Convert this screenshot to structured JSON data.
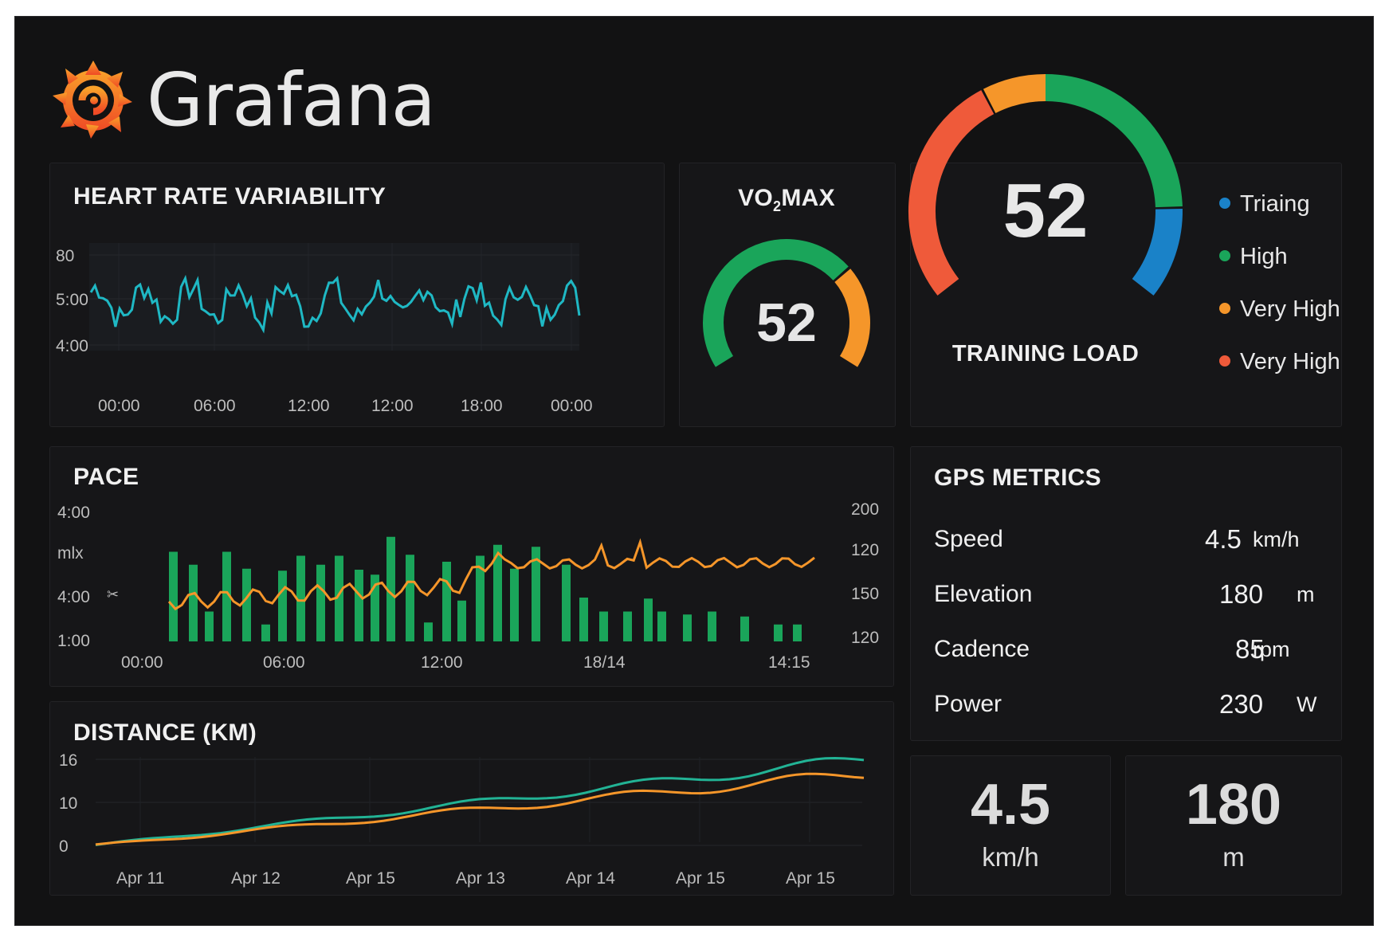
{
  "app": {
    "name": "Grafana"
  },
  "colors": {
    "teal": "#1fb8c4",
    "green": "#1aa55a",
    "orange": "#f5962a",
    "red": "#ef5a3a",
    "blue": "#1a82c8",
    "line_green": "#22b395"
  },
  "hrv": {
    "title": "HEART RATE VARIABILITY",
    "y_labels": [
      "80",
      "5:00",
      "4:00"
    ],
    "x_labels": [
      "00:00",
      "06:00",
      "12:00",
      "12:00",
      "18:00",
      "00:00"
    ]
  },
  "vo2": {
    "title_pre": "VO",
    "title_sub": "2",
    "title_post": "MAX",
    "value": "52",
    "gauge_fraction": 0.7
  },
  "training_load": {
    "value": "52",
    "label": "TRAINING LOAD",
    "legend": [
      {
        "label": "Triaing",
        "color": "#1a82c8"
      },
      {
        "label": "High",
        "color": "#1aa55a"
      },
      {
        "label": "Very High",
        "color": "#f5962a"
      },
      {
        "label": "Very High",
        "color": "#ef5a3a"
      }
    ]
  },
  "pace": {
    "title": "PACE",
    "y_left": [
      "4:00",
      "mlx",
      "4:00",
      "1:00"
    ],
    "y_right": [
      "200",
      "120",
      "150",
      "120"
    ],
    "x_labels": [
      "00:00",
      "06:00",
      "12:00",
      "18/14",
      "14:15"
    ],
    "marker": "✂"
  },
  "gps": {
    "title": "GPS METRICS",
    "rows": [
      {
        "label": "Speed",
        "value": "4.5",
        "unit": "km/h"
      },
      {
        "label": "Elevation",
        "value": "180",
        "unit": "m"
      },
      {
        "label": "Cadence",
        "value": "85",
        "unit": "rpm"
      },
      {
        "label": "Power",
        "value": "230",
        "unit": "W"
      }
    ]
  },
  "distance": {
    "title": "DISTANCE (KM)",
    "y_labels": [
      "16",
      "10",
      "0"
    ],
    "x_labels": [
      "Apr 11",
      "Apr 12",
      "Apr 15",
      "Apr 13",
      "Apr 14",
      "Apr 15",
      "Apr 15"
    ]
  },
  "stats": [
    {
      "value": "4.5",
      "unit": "km/h"
    },
    {
      "value": "180",
      "unit": "m"
    }
  ]
}
